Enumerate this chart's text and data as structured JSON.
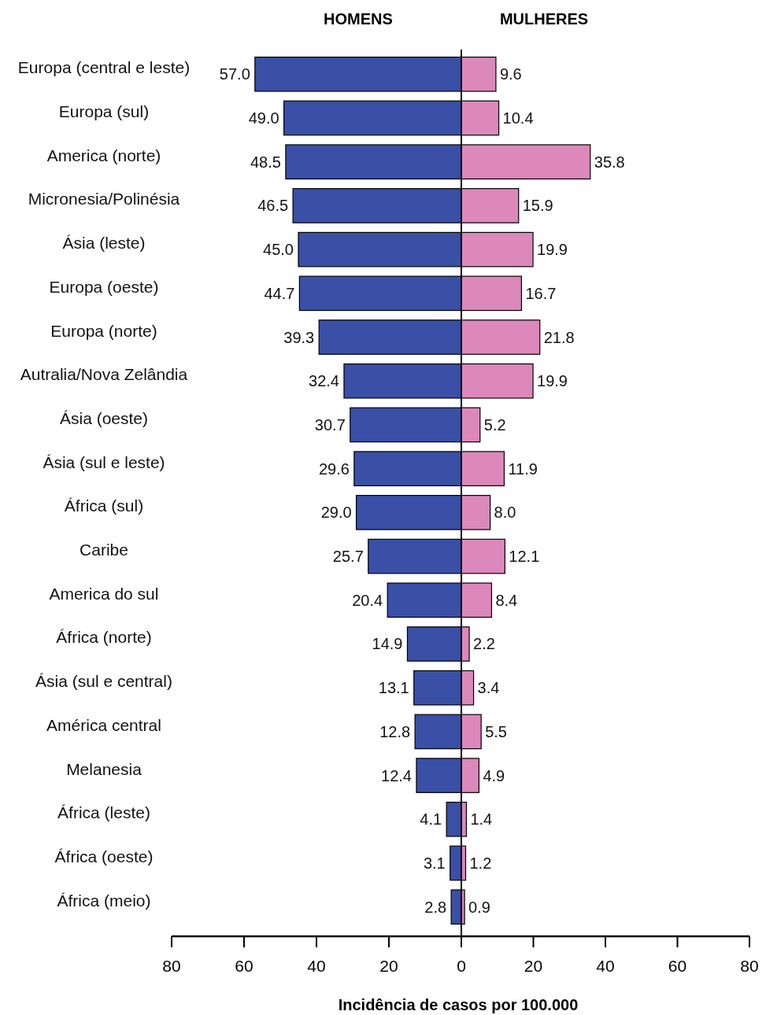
{
  "chart_data": [
    {
      "type": "bar",
      "orientation": "horizontal",
      "title": "HOMENS",
      "categories": [
        "Europa (central e leste)",
        "Europa (sul)",
        "America (norte)",
        "Micronesia/Polinésia",
        "Ásia (leste)",
        "Europa (oeste)",
        "Europa (norte)",
        "Autralia/Nova Zelândia",
        "Ásia (oeste)",
        "Ásia (sul e leste)",
        "África (sul)",
        "Caribe",
        "America do sul",
        "África (norte)",
        "Ásia (sul e central)",
        "América central",
        "Melanesia",
        "África (leste)",
        "África (oeste)",
        "África (meio)"
      ],
      "series": [
        {
          "color": "#3a4fa6",
          "values": [
            57.0,
            49.0,
            48.5,
            46.5,
            45.0,
            44.7,
            39.3,
            32.4,
            30.7,
            29.6,
            29.0,
            25.7,
            20.4,
            14.9,
            13.1,
            12.8,
            12.4,
            4.1,
            3.1,
            2.8
          ],
          "value_labels": [
            "57.0",
            "49.0",
            "48.5",
            "46.5",
            "45.0",
            "44.7",
            "39.3",
            "32.4",
            "30.7",
            "29.6",
            "29.0",
            "25.7",
            "20.4",
            "14.9",
            "13.1",
            "12.8",
            "12.4",
            "4.1",
            "3.1",
            "2.8"
          ]
        }
      ],
      "xlim": [
        80,
        0
      ],
      "xticks": [
        80,
        60,
        40,
        20,
        0
      ]
    },
    {
      "type": "bar",
      "orientation": "horizontal",
      "title": "MULHERES",
      "xlabel": "Incidência de casos por 100.000",
      "categories": [
        null,
        null,
        null,
        null,
        null,
        null,
        null,
        null,
        null,
        null,
        null,
        null,
        null,
        null,
        null,
        null,
        null,
        null,
        null,
        null
      ],
      "series": [
        {
          "color": "#dd88bb",
          "values": [
            9.6,
            10.4,
            35.8,
            15.9,
            19.9,
            16.7,
            21.8,
            19.9,
            5.2,
            11.9,
            8.0,
            12.1,
            8.4,
            2.2,
            3.4,
            5.5,
            4.9,
            1.4,
            1.2,
            0.9
          ],
          "value_labels": [
            "9.6",
            "10.4",
            "35.8",
            "15.9",
            "19.9",
            "16.7",
            "21.8",
            "19.9",
            "5.2",
            "11.9",
            "8.0",
            "12.1",
            "8.4",
            "2.2",
            "3.4",
            "5.5",
            "4.9",
            "1.4",
            "1.2",
            "0.9"
          ]
        }
      ],
      "xlim": [
        0,
        80
      ],
      "xticks": [
        {
          "value": 0,
          "label": null
        },
        20,
        40,
        60,
        80
      ],
      "tick_labels": "x"
    }
  ]
}
